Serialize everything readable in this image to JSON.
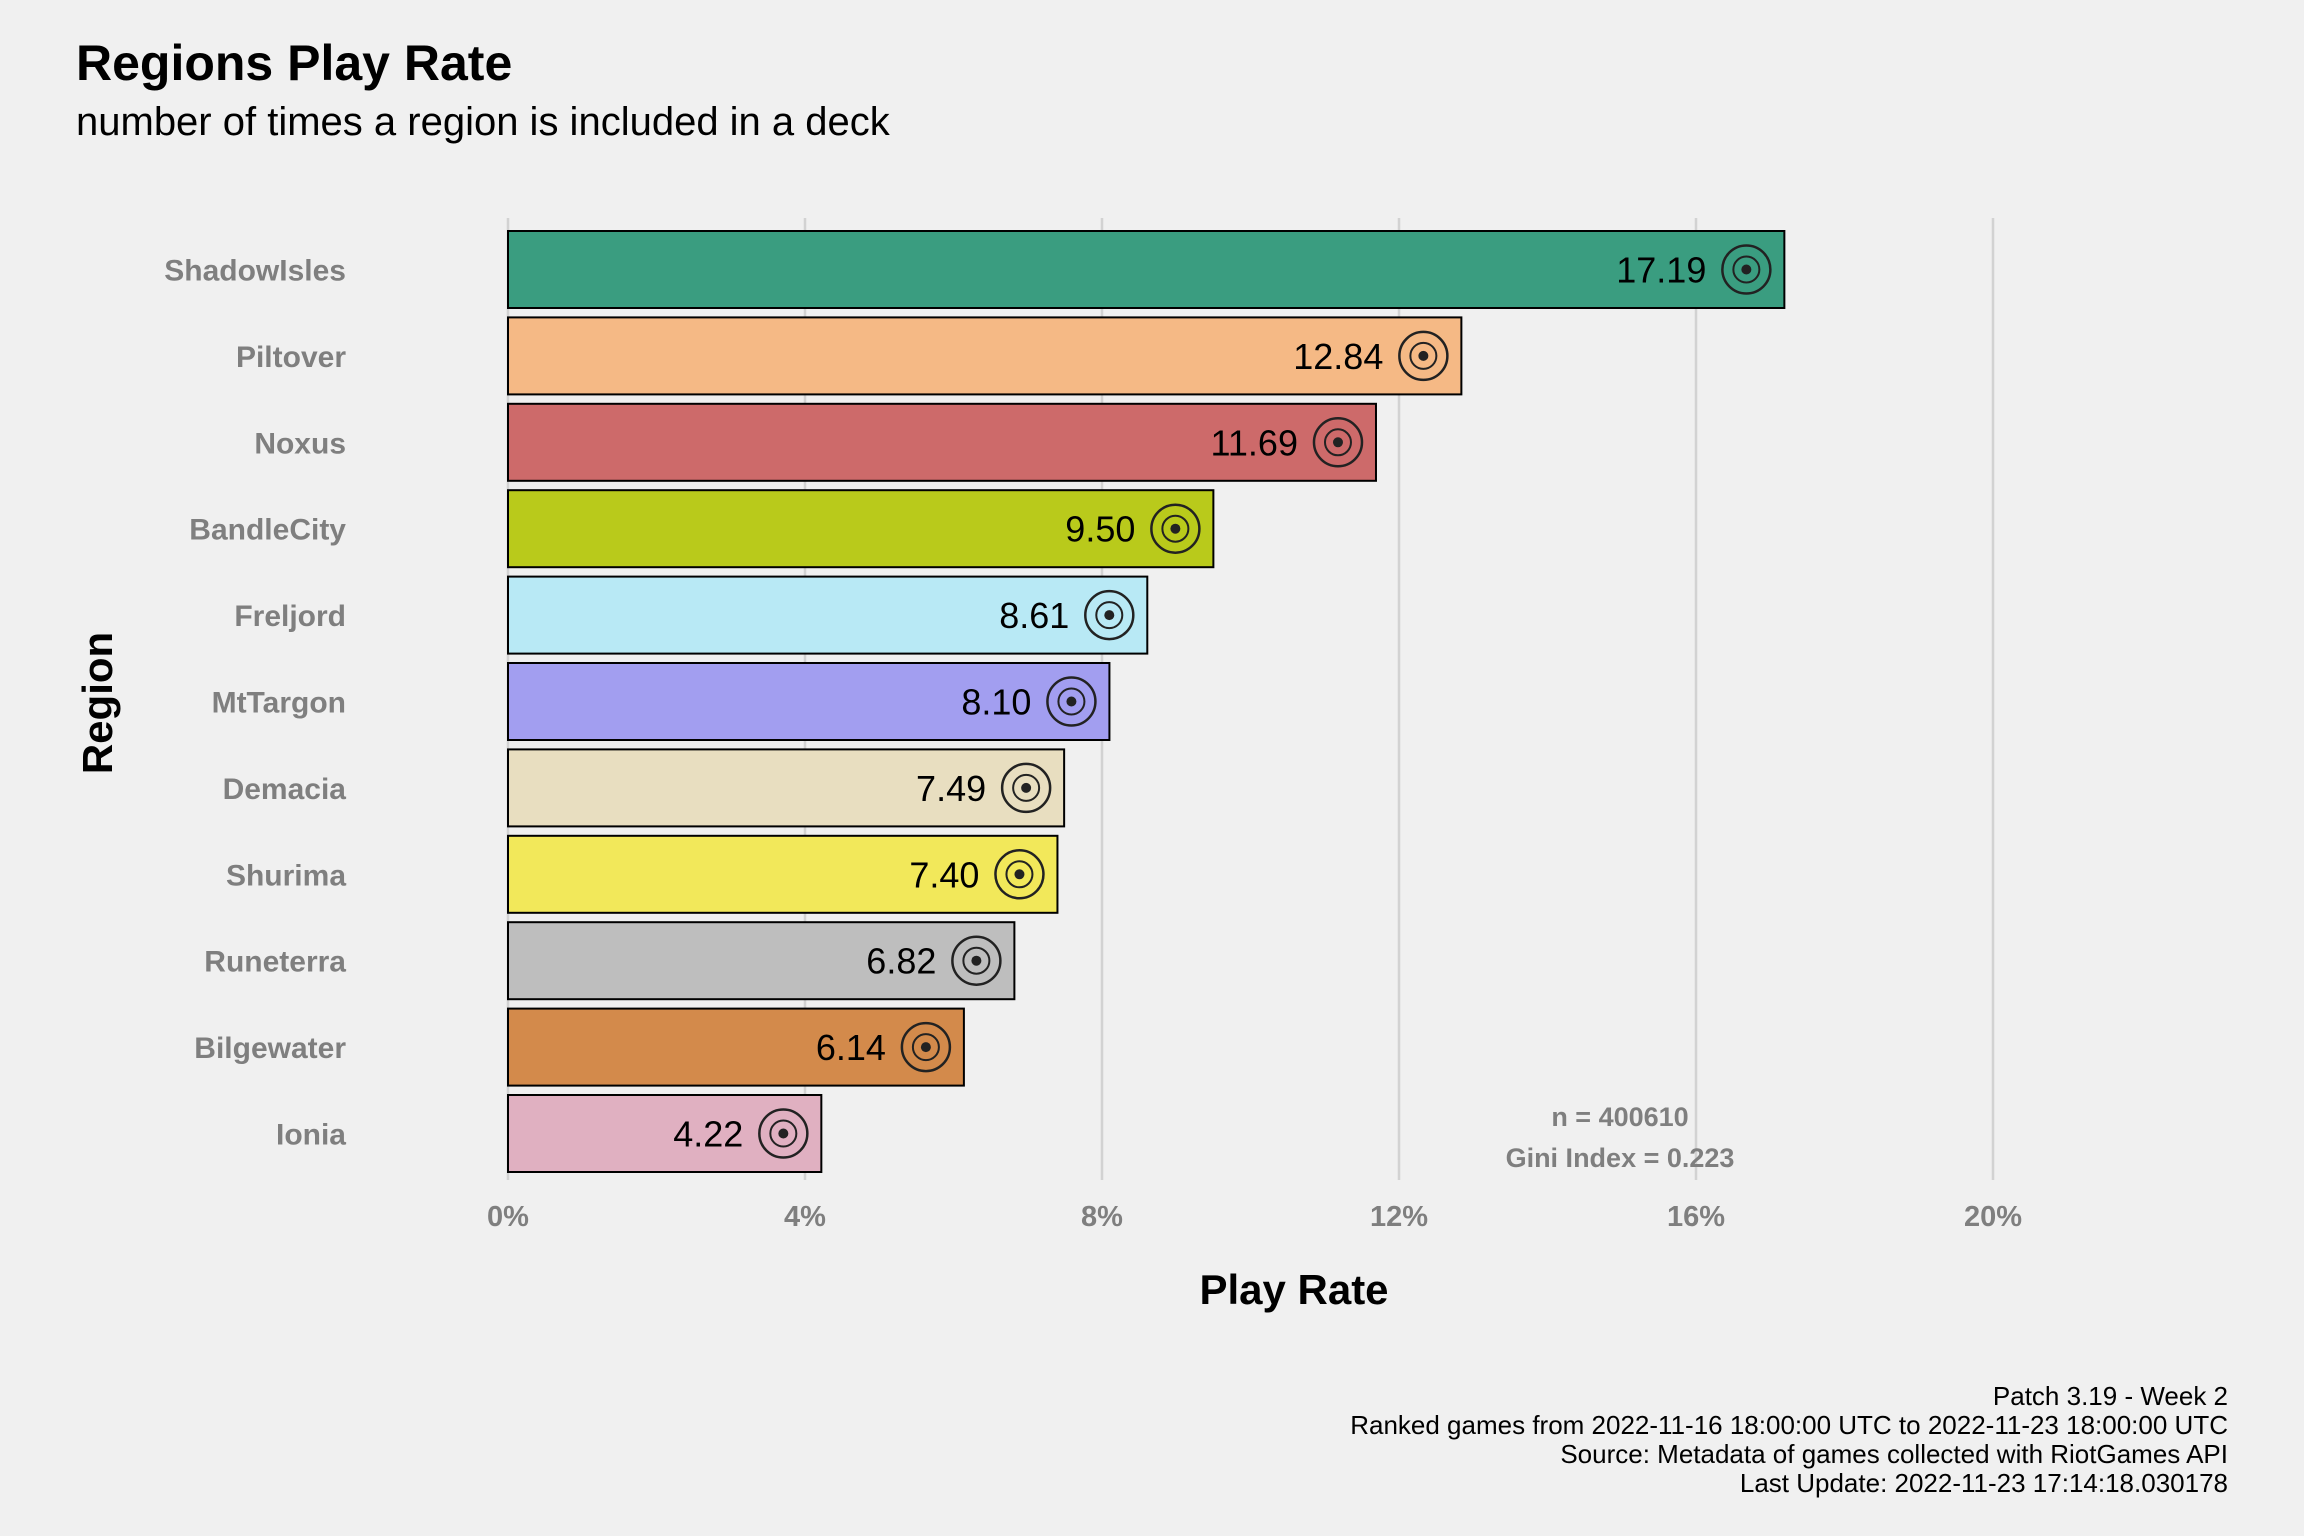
{
  "title": "Regions Play Rate",
  "subtitle": "number of times a region is included in a deck",
  "caption": [
    "Patch 3.19 - Week 2",
    "Ranked games from 2022-11-16 18:00:00 UTC to 2022-11-23 18:00:00 UTC",
    "Source: Metadata of games collected with RiotGames API",
    "Last Update: 2022-11-23 17:14:18.030178"
  ],
  "chart_data": {
    "type": "bar",
    "orientation": "horizontal",
    "title": "Regions Play Rate",
    "subtitle": "number of times a region is included in a deck",
    "xlabel": "Play Rate",
    "ylabel": "Region",
    "xlim": [
      0,
      20
    ],
    "xticks": [
      0,
      4,
      8,
      12,
      16,
      20
    ],
    "xtick_labels": [
      "0%",
      "4%",
      "8%",
      "12%",
      "16%",
      "20%"
    ],
    "grid": "vertical major",
    "categories": [
      "ShadowIsles",
      "Piltover",
      "Noxus",
      "BandleCity",
      "Freljord",
      "MtTargon",
      "Demacia",
      "Shurima",
      "Runeterra",
      "Bilgewater",
      "Ionia"
    ],
    "values": [
      17.19,
      12.84,
      11.69,
      9.5,
      8.61,
      8.1,
      7.49,
      7.4,
      6.82,
      6.14,
      4.22
    ],
    "value_labels": [
      "17.19",
      "12.84",
      "11.69",
      "9.50",
      "8.61",
      "8.10",
      "7.49",
      "7.40",
      "6.82",
      "6.14",
      "4.22"
    ],
    "colors": [
      "#3a9d80",
      "#f5b985",
      "#cd6a6a",
      "#b9ca1b",
      "#b8e9f5",
      "#a29ef0",
      "#e8dec0",
      "#f2e85a",
      "#bebebe",
      "#d38a4b",
      "#e0b0c1"
    ],
    "icons": [
      "shadowisles-icon",
      "piltover-icon",
      "noxus-icon",
      "bandlecity-icon",
      "freljord-icon",
      "mttargon-icon",
      "demacia-icon",
      "shurima-icon",
      "runeterra-icon",
      "bilgewater-icon",
      "ionia-icon"
    ],
    "annotations": [
      "n = 400610",
      "Gini Index = 0.223"
    ]
  }
}
